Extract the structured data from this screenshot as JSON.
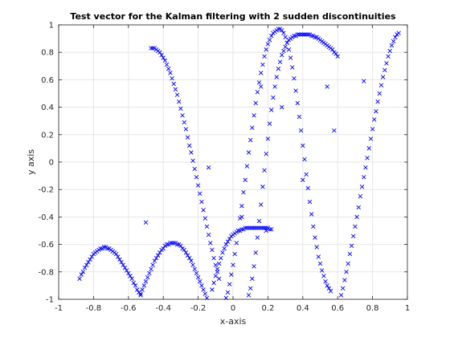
{
  "chart_data": {
    "type": "scatter",
    "title": "Test vector for the Kalman filtering with 2 sudden discontinuities",
    "xlabel": "x-axis",
    "ylabel": "y axis",
    "xlim": [
      -1,
      1
    ],
    "ylim": [
      -1,
      1
    ],
    "grid": true,
    "marker": "x",
    "color": "#0000ff",
    "x_ticks": [
      "-1",
      "-0.8",
      "-0.6",
      "-0.4",
      "-0.2",
      "0",
      "0.2",
      "0.4",
      "0.6",
      "0.8",
      "1"
    ],
    "y_ticks": [
      "-1",
      "-0.8",
      "-0.6",
      "-0.4",
      "-0.2",
      "0",
      "0.2",
      "0.4",
      "0.6",
      "0.8",
      "1"
    ],
    "series": [
      {
        "points": [
          [
            -0.88,
            -0.85
          ],
          [
            -0.87,
            -0.82
          ],
          [
            -0.86,
            -0.8
          ],
          [
            -0.85,
            -0.77
          ],
          [
            -0.84,
            -0.75
          ],
          [
            -0.83,
            -0.73
          ],
          [
            -0.82,
            -0.71
          ],
          [
            -0.81,
            -0.69
          ],
          [
            -0.8,
            -0.67
          ],
          [
            -0.79,
            -0.66
          ],
          [
            -0.78,
            -0.65
          ],
          [
            -0.77,
            -0.64
          ],
          [
            -0.76,
            -0.63
          ],
          [
            -0.75,
            -0.63
          ],
          [
            -0.74,
            -0.62
          ],
          [
            -0.73,
            -0.62
          ],
          [
            -0.72,
            -0.63
          ],
          [
            -0.71,
            -0.63
          ],
          [
            -0.7,
            -0.64
          ],
          [
            -0.69,
            -0.65
          ],
          [
            -0.68,
            -0.66
          ],
          [
            -0.67,
            -0.67
          ],
          [
            -0.66,
            -0.69
          ],
          [
            -0.65,
            -0.71
          ],
          [
            -0.64,
            -0.73
          ],
          [
            -0.63,
            -0.75
          ],
          [
            -0.62,
            -0.77
          ],
          [
            -0.61,
            -0.79
          ],
          [
            -0.6,
            -0.81
          ],
          [
            -0.59,
            -0.83
          ],
          [
            -0.58,
            -0.85
          ],
          [
            -0.57,
            -0.88
          ],
          [
            -0.56,
            -0.9
          ],
          [
            -0.55,
            -0.93
          ],
          [
            -0.54,
            -0.95
          ],
          [
            -0.53,
            -0.97
          ],
          [
            -0.53,
            -0.96
          ],
          [
            -0.52,
            -0.93
          ],
          [
            -0.51,
            -0.9
          ],
          [
            -0.5,
            -0.87
          ],
          [
            -0.49,
            -0.84
          ],
          [
            -0.48,
            -0.81
          ],
          [
            -0.47,
            -0.78
          ],
          [
            -0.46,
            -0.75
          ],
          [
            -0.45,
            -0.72
          ],
          [
            -0.44,
            -0.7
          ],
          [
            -0.43,
            -0.68
          ],
          [
            -0.42,
            -0.66
          ],
          [
            -0.41,
            -0.64
          ],
          [
            -0.4,
            -0.63
          ],
          [
            -0.39,
            -0.61
          ],
          [
            -0.38,
            -0.6
          ],
          [
            -0.37,
            -0.6
          ],
          [
            -0.36,
            -0.59
          ],
          [
            -0.35,
            -0.59
          ],
          [
            -0.34,
            -0.59
          ],
          [
            -0.33,
            -0.59
          ],
          [
            -0.32,
            -0.6
          ],
          [
            -0.31,
            -0.6
          ],
          [
            -0.3,
            -0.61
          ],
          [
            -0.29,
            -0.63
          ],
          [
            -0.28,
            -0.64
          ],
          [
            -0.27,
            -0.66
          ],
          [
            -0.26,
            -0.68
          ],
          [
            -0.25,
            -0.7
          ],
          [
            -0.24,
            -0.72
          ],
          [
            -0.23,
            -0.75
          ],
          [
            -0.22,
            -0.78
          ],
          [
            -0.21,
            -0.81
          ],
          [
            -0.2,
            -0.84
          ],
          [
            -0.19,
            -0.87
          ],
          [
            -0.18,
            -0.9
          ],
          [
            -0.17,
            -0.93
          ],
          [
            -0.16,
            -0.96
          ],
          [
            -0.15,
            -0.99
          ],
          [
            -0.47,
            0.83
          ],
          [
            -0.46,
            0.83
          ],
          [
            -0.45,
            0.83
          ],
          [
            -0.44,
            0.82
          ],
          [
            -0.43,
            0.81
          ],
          [
            -0.42,
            0.8
          ],
          [
            -0.41,
            0.78
          ],
          [
            -0.4,
            0.76
          ],
          [
            -0.39,
            0.74
          ],
          [
            -0.38,
            0.71
          ],
          [
            -0.37,
            0.68
          ],
          [
            -0.36,
            0.65
          ],
          [
            -0.35,
            0.61
          ],
          [
            -0.34,
            0.57
          ],
          [
            -0.33,
            0.53
          ],
          [
            -0.32,
            0.49
          ],
          [
            -0.31,
            0.44
          ],
          [
            -0.3,
            0.39
          ],
          [
            -0.29,
            0.34
          ],
          [
            -0.28,
            0.29
          ],
          [
            -0.27,
            0.24
          ],
          [
            -0.26,
            0.18
          ],
          [
            -0.25,
            0.12
          ],
          [
            -0.24,
            0.07
          ],
          [
            -0.23,
            0.01
          ],
          [
            -0.22,
            -0.05
          ],
          [
            -0.21,
            -0.11
          ],
          [
            -0.2,
            -0.17
          ],
          [
            -0.19,
            -0.23
          ],
          [
            -0.18,
            -0.29
          ],
          [
            -0.17,
            -0.35
          ],
          [
            -0.16,
            -0.41
          ],
          [
            -0.15,
            -0.47
          ],
          [
            -0.14,
            -0.53
          ],
          [
            -0.13,
            -0.59
          ],
          [
            -0.12,
            -0.64
          ],
          [
            -0.11,
            -0.7
          ],
          [
            -0.1,
            -0.75
          ],
          [
            -0.09,
            -0.8
          ],
          [
            -0.08,
            -0.85
          ],
          [
            -0.12,
            -0.93
          ],
          [
            -0.11,
            -0.88
          ],
          [
            -0.1,
            -0.83
          ],
          [
            -0.09,
            -0.78
          ],
          [
            -0.08,
            -0.74
          ],
          [
            -0.07,
            -0.7
          ],
          [
            -0.06,
            -0.66
          ],
          [
            -0.05,
            -0.63
          ],
          [
            -0.04,
            -0.6
          ],
          [
            -0.03,
            -0.58
          ],
          [
            -0.02,
            -0.56
          ],
          [
            -0.01,
            -0.54
          ],
          [
            0.0,
            -0.53
          ],
          [
            0.01,
            -0.52
          ],
          [
            0.02,
            -0.51
          ],
          [
            0.03,
            -0.5
          ],
          [
            0.04,
            -0.5
          ],
          [
            0.05,
            -0.49
          ],
          [
            0.06,
            -0.49
          ],
          [
            0.07,
            -0.48
          ],
          [
            0.08,
            -0.48
          ],
          [
            0.09,
            -0.48
          ],
          [
            0.1,
            -0.48
          ],
          [
            0.11,
            -0.48
          ],
          [
            0.12,
            -0.48
          ],
          [
            0.13,
            -0.48
          ],
          [
            0.14,
            -0.48
          ],
          [
            0.15,
            -0.48
          ],
          [
            0.16,
            -0.48
          ],
          [
            0.17,
            -0.48
          ],
          [
            0.18,
            -0.48
          ],
          [
            0.19,
            -0.48
          ],
          [
            0.2,
            -0.48
          ],
          [
            0.21,
            -0.49
          ],
          [
            0.22,
            -0.49
          ],
          [
            -0.04,
            -0.99
          ],
          [
            -0.03,
            -0.95
          ],
          [
            -0.02,
            -0.89
          ],
          [
            -0.01,
            -0.82
          ],
          [
            0.0,
            -0.75
          ],
          [
            0.01,
            -0.67
          ],
          [
            0.02,
            -0.59
          ],
          [
            0.03,
            -0.5
          ],
          [
            0.04,
            -0.41
          ],
          [
            0.05,
            -0.32
          ],
          [
            0.06,
            -0.22
          ],
          [
            0.07,
            -0.13
          ],
          [
            0.08,
            -0.03
          ],
          [
            0.09,
            0.07
          ],
          [
            0.1,
            0.16
          ],
          [
            0.11,
            0.25
          ],
          [
            0.12,
            0.34
          ],
          [
            0.13,
            0.43
          ],
          [
            0.14,
            0.51
          ],
          [
            0.15,
            0.58
          ],
          [
            0.16,
            0.65
          ],
          [
            0.17,
            0.71
          ],
          [
            0.18,
            0.77
          ],
          [
            0.19,
            0.82
          ],
          [
            0.2,
            0.86
          ],
          [
            0.21,
            0.89
          ],
          [
            0.22,
            0.92
          ],
          [
            0.23,
            0.94
          ],
          [
            0.24,
            0.95
          ],
          [
            0.25,
            0.96
          ],
          [
            0.26,
            0.97
          ],
          [
            0.27,
            0.97
          ],
          [
            0.28,
            0.96
          ],
          [
            0.29,
            0.94
          ],
          [
            0.3,
            0.91
          ],
          [
            0.31,
            0.87
          ],
          [
            0.32,
            0.82
          ],
          [
            0.33,
            0.76
          ],
          [
            0.34,
            0.69
          ],
          [
            0.35,
            0.61
          ],
          [
            0.36,
            0.52
          ],
          [
            0.37,
            0.43
          ],
          [
            0.38,
            0.33
          ],
          [
            0.39,
            0.23
          ],
          [
            0.4,
            0.12
          ],
          [
            0.41,
            0.02
          ],
          [
            0.42,
            -0.09
          ],
          [
            0.43,
            -0.19
          ],
          [
            0.44,
            -0.29
          ],
          [
            0.45,
            -0.38
          ],
          [
            0.46,
            -0.47
          ],
          [
            0.47,
            -0.55
          ],
          [
            0.48,
            -0.62
          ],
          [
            0.49,
            -0.69
          ],
          [
            0.5,
            -0.74
          ],
          [
            0.51,
            -0.79
          ],
          [
            0.52,
            -0.83
          ],
          [
            0.53,
            -0.87
          ],
          [
            0.54,
            -0.9
          ],
          [
            0.55,
            -0.92
          ],
          [
            0.56,
            -0.94
          ],
          [
            0.09,
            -0.97
          ],
          [
            0.1,
            -0.92
          ],
          [
            0.11,
            -0.85
          ],
          [
            0.12,
            -0.76
          ],
          [
            0.13,
            -0.66
          ],
          [
            0.14,
            -0.55
          ],
          [
            0.15,
            -0.43
          ],
          [
            0.16,
            -0.31
          ],
          [
            0.17,
            -0.18
          ],
          [
            0.18,
            -0.06
          ],
          [
            0.19,
            0.06
          ],
          [
            0.2,
            0.17
          ],
          [
            0.21,
            0.28
          ],
          [
            0.22,
            0.38
          ],
          [
            0.23,
            0.47
          ],
          [
            0.24,
            0.55
          ],
          [
            0.25,
            0.62
          ],
          [
            0.26,
            0.68
          ],
          [
            0.27,
            0.73
          ],
          [
            0.28,
            0.78
          ],
          [
            0.29,
            0.81
          ],
          [
            0.3,
            0.84
          ],
          [
            0.31,
            0.87
          ],
          [
            0.32,
            0.89
          ],
          [
            0.33,
            0.9
          ],
          [
            0.34,
            0.91
          ],
          [
            0.35,
            0.92
          ],
          [
            0.36,
            0.92
          ],
          [
            0.37,
            0.93
          ],
          [
            0.38,
            0.93
          ],
          [
            0.39,
            0.93
          ],
          [
            0.4,
            0.93
          ],
          [
            0.41,
            0.93
          ],
          [
            0.42,
            0.93
          ],
          [
            0.43,
            0.93
          ],
          [
            0.44,
            0.93
          ],
          [
            0.45,
            0.92
          ],
          [
            0.46,
            0.92
          ],
          [
            0.47,
            0.91
          ],
          [
            0.48,
            0.91
          ],
          [
            0.49,
            0.9
          ],
          [
            0.5,
            0.89
          ],
          [
            0.51,
            0.88
          ],
          [
            0.52,
            0.87
          ],
          [
            0.53,
            0.86
          ],
          [
            0.54,
            0.85
          ],
          [
            0.55,
            0.84
          ],
          [
            0.56,
            0.83
          ],
          [
            0.57,
            0.82
          ],
          [
            0.58,
            0.8
          ],
          [
            0.59,
            0.79
          ],
          [
            0.6,
            0.77
          ],
          [
            0.62,
            -0.97
          ],
          [
            0.63,
            -0.92
          ],
          [
            0.64,
            -0.86
          ],
          [
            0.65,
            -0.8
          ],
          [
            0.66,
            -0.74
          ],
          [
            0.67,
            -0.67
          ],
          [
            0.68,
            -0.61
          ],
          [
            0.69,
            -0.54
          ],
          [
            0.7,
            -0.47
          ],
          [
            0.71,
            -0.4
          ],
          [
            0.72,
            -0.33
          ],
          [
            0.73,
            -0.25
          ],
          [
            0.74,
            -0.18
          ],
          [
            0.75,
            -0.11
          ],
          [
            0.76,
            -0.04
          ],
          [
            0.77,
            0.03
          ],
          [
            0.78,
            0.1
          ],
          [
            0.79,
            0.17
          ],
          [
            0.8,
            0.24
          ],
          [
            0.81,
            0.31
          ],
          [
            0.82,
            0.37
          ],
          [
            0.83,
            0.44
          ],
          [
            0.84,
            0.5
          ],
          [
            0.85,
            0.56
          ],
          [
            0.86,
            0.62
          ],
          [
            0.87,
            0.67
          ],
          [
            0.88,
            0.72
          ],
          [
            0.89,
            0.77
          ],
          [
            0.9,
            0.81
          ],
          [
            0.91,
            0.85
          ],
          [
            0.92,
            0.88
          ],
          [
            0.93,
            0.91
          ],
          [
            0.94,
            0.93
          ],
          [
            0.95,
            0.94
          ],
          [
            -0.5,
            -0.44
          ],
          [
            -0.14,
            -0.04
          ],
          [
            0.4,
            -0.13
          ],
          [
            0.58,
            0.23
          ],
          [
            0.75,
            0.59
          ],
          [
            0.54,
            0.55
          ],
          [
            0.16,
            0.55
          ],
          [
            0.19,
            -0.5
          ],
          [
            0.05,
            -0.4
          ],
          [
            0.28,
            0.4
          ]
        ]
      }
    ]
  }
}
